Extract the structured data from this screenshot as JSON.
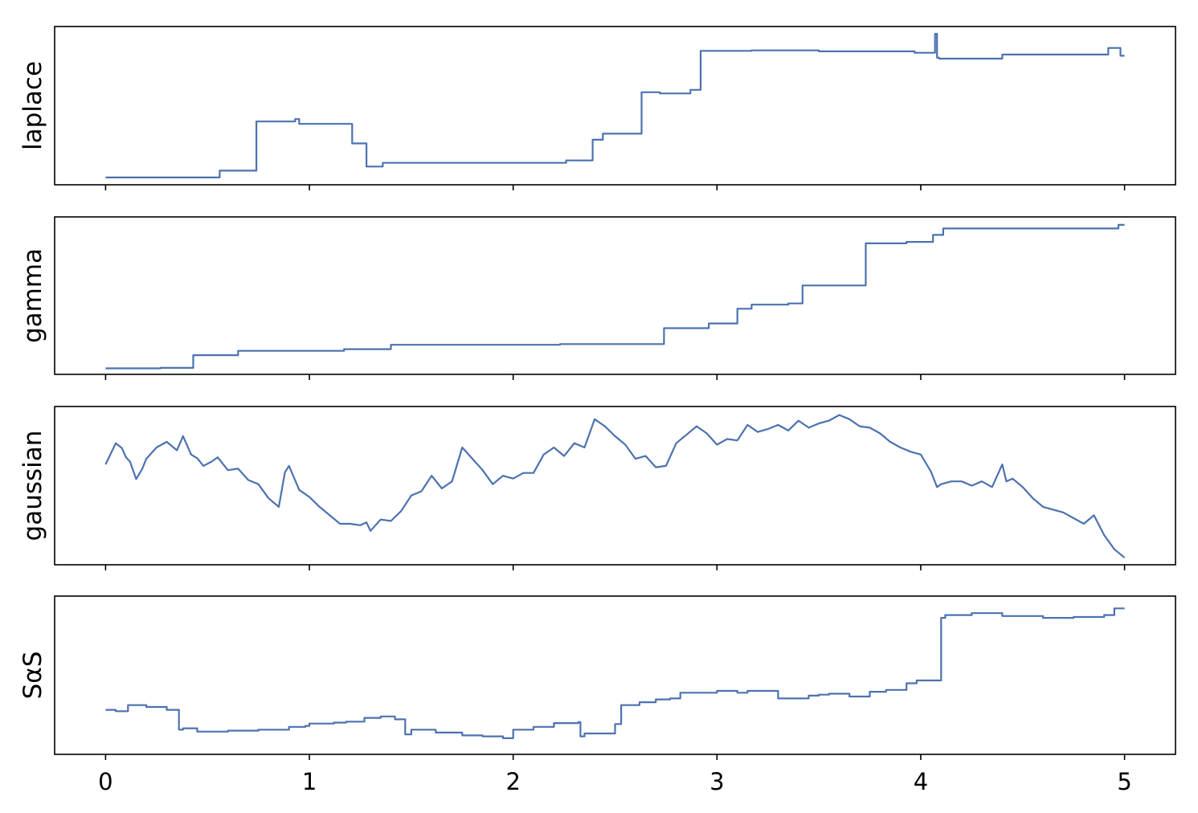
{
  "chart_data": [
    {
      "type": "line",
      "step": true,
      "ylabel": "laplace",
      "xlim": [
        -0.25,
        5.25
      ],
      "ylim": [
        -0.3,
        6.2
      ],
      "y_ticks_shown": false,
      "x_tick_labels_shown": false,
      "color": "#4c72b0",
      "series": [
        {
          "x": [
            0,
            0.56,
            0.56,
            0.74,
            0.74,
            0.93,
            0.93,
            0.95,
            0.95,
            1.21,
            1.21,
            1.28,
            1.28,
            1.36,
            1.36,
            1.8,
            1.8,
            2.26,
            2.26,
            2.39,
            2.39,
            2.44,
            2.44,
            2.63,
            2.63,
            2.72,
            2.72,
            2.87,
            2.87,
            2.92,
            2.92,
            3.17,
            3.17,
            3.5,
            3.5,
            3.97,
            3.97,
            4.07,
            4.07,
            4.08,
            4.08,
            4.09,
            4.09,
            4.4,
            4.4,
            4.92,
            4.92,
            4.98,
            4.98,
            5.0
          ],
          "y": [
            0.0,
            0.0,
            0.28,
            0.28,
            2.3,
            2.3,
            2.4,
            2.4,
            2.2,
            2.2,
            1.4,
            1.4,
            0.45,
            0.45,
            0.6,
            0.6,
            0.6,
            0.6,
            0.7,
            0.7,
            1.55,
            1.55,
            1.8,
            1.8,
            3.5,
            3.5,
            3.45,
            3.45,
            3.6,
            3.6,
            5.2,
            5.2,
            5.22,
            5.22,
            5.18,
            5.18,
            5.12,
            5.12,
            5.9,
            5.9,
            4.92,
            4.92,
            4.88,
            4.88,
            5.05,
            5.05,
            5.32,
            5.32,
            5.0,
            5.0
          ]
        }
      ]
    },
    {
      "type": "line",
      "step": true,
      "ylabel": "gamma",
      "xlim": [
        -0.25,
        5.25
      ],
      "ylim": [
        -0.25,
        6.3
      ],
      "y_ticks_shown": false,
      "x_tick_labels_shown": false,
      "color": "#4c72b0",
      "series": [
        {
          "x": [
            0,
            0.27,
            0.27,
            0.43,
            0.43,
            0.65,
            0.65,
            1.17,
            1.17,
            1.4,
            1.4,
            2.23,
            2.23,
            2.74,
            2.74,
            2.96,
            2.96,
            3.1,
            3.1,
            3.17,
            3.17,
            3.35,
            3.35,
            3.42,
            3.42,
            3.73,
            3.73,
            3.93,
            3.93,
            4.06,
            4.06,
            4.11,
            4.11,
            4.97,
            4.97,
            5.0
          ],
          "y": [
            0.0,
            0.0,
            0.02,
            0.02,
            0.55,
            0.55,
            0.73,
            0.73,
            0.8,
            0.8,
            0.98,
            0.98,
            1.01,
            1.01,
            1.67,
            1.67,
            1.87,
            1.87,
            2.48,
            2.48,
            2.65,
            2.65,
            2.7,
            2.7,
            3.45,
            3.45,
            5.2,
            5.2,
            5.26,
            5.26,
            5.55,
            5.55,
            5.82,
            5.82,
            5.97,
            5.97
          ]
        }
      ]
    },
    {
      "type": "line",
      "step": false,
      "ylabel": "gaussian",
      "xlim": [
        -0.25,
        5.25
      ],
      "ylim": [
        -3.55,
        2.05
      ],
      "y_ticks_shown": false,
      "x_tick_labels_shown": false,
      "color": "#4c72b0",
      "series": [
        {
          "x": [
            0.0,
            0.05,
            0.08,
            0.1,
            0.12,
            0.15,
            0.18,
            0.2,
            0.25,
            0.3,
            0.35,
            0.38,
            0.42,
            0.45,
            0.48,
            0.52,
            0.55,
            0.6,
            0.65,
            0.7,
            0.75,
            0.8,
            0.85,
            0.88,
            0.9,
            0.95,
            1.0,
            1.05,
            1.1,
            1.15,
            1.2,
            1.25,
            1.28,
            1.3,
            1.35,
            1.4,
            1.45,
            1.5,
            1.55,
            1.6,
            1.65,
            1.7,
            1.75,
            1.8,
            1.85,
            1.9,
            1.95,
            2.0,
            2.05,
            2.1,
            2.15,
            2.2,
            2.25,
            2.3,
            2.35,
            2.4,
            2.45,
            2.5,
            2.55,
            2.6,
            2.65,
            2.7,
            2.75,
            2.8,
            2.85,
            2.9,
            2.95,
            3.0,
            3.05,
            3.1,
            3.15,
            3.2,
            3.25,
            3.3,
            3.35,
            3.4,
            3.45,
            3.5,
            3.55,
            3.6,
            3.65,
            3.7,
            3.75,
            3.8,
            3.85,
            3.9,
            3.95,
            4.0,
            4.05,
            4.08,
            4.1,
            4.15,
            4.2,
            4.25,
            4.3,
            4.35,
            4.4,
            4.42,
            4.45,
            4.5,
            4.55,
            4.6,
            4.65,
            4.7,
            4.75,
            4.8,
            4.85,
            4.9,
            4.95,
            5.0
          ],
          "y": [
            0.0,
            0.75,
            0.58,
            0.25,
            0.1,
            -0.52,
            -0.15,
            0.2,
            0.6,
            0.8,
            0.5,
            1.0,
            0.35,
            0.22,
            -0.05,
            0.1,
            0.25,
            -0.2,
            -0.15,
            -0.55,
            -0.7,
            -1.2,
            -1.5,
            -0.28,
            -0.05,
            -0.9,
            -1.15,
            -1.5,
            -1.8,
            -2.1,
            -2.1,
            -2.15,
            -2.05,
            -2.35,
            -1.95,
            -2.0,
            -1.65,
            -1.1,
            -0.95,
            -0.4,
            -0.85,
            -0.6,
            0.6,
            0.2,
            -0.2,
            -0.7,
            -0.4,
            -0.5,
            -0.3,
            -0.3,
            0.35,
            0.6,
            0.3,
            0.75,
            0.6,
            1.6,
            1.35,
            1.0,
            0.7,
            0.2,
            0.3,
            -0.1,
            -0.05,
            0.75,
            1.05,
            1.35,
            1.1,
            0.7,
            0.9,
            0.85,
            1.4,
            1.15,
            1.25,
            1.4,
            1.2,
            1.55,
            1.3,
            1.45,
            1.55,
            1.75,
            1.6,
            1.35,
            1.3,
            1.1,
            0.8,
            0.6,
            0.45,
            0.35,
            -0.25,
            -0.8,
            -0.7,
            -0.6,
            -0.6,
            -0.75,
            -0.6,
            -0.8,
            0.0,
            -0.6,
            -0.5,
            -0.8,
            -1.2,
            -1.5,
            -1.6,
            -1.7,
            -1.9,
            -2.1,
            -1.8,
            -2.5,
            -3.0,
            -3.3
          ]
        }
      ]
    },
    {
      "type": "line",
      "step": true,
      "ylabel": "SαS",
      "xlim": [
        -0.25,
        5.25
      ],
      "ylim": [
        -2.4,
        14.3
      ],
      "y_ticks_shown": false,
      "x_tick_labels_shown": true,
      "x_ticks": [
        0,
        1,
        2,
        3,
        4,
        5
      ],
      "color": "#4c72b0",
      "series": [
        {
          "x": [
            0,
            0.05,
            0.05,
            0.11,
            0.11,
            0.2,
            0.2,
            0.3,
            0.3,
            0.36,
            0.36,
            0.38,
            0.38,
            0.45,
            0.45,
            0.6,
            0.6,
            0.75,
            0.75,
            0.9,
            0.9,
            0.98,
            0.98,
            1.0,
            1.0,
            1.12,
            1.12,
            1.18,
            1.18,
            1.27,
            1.27,
            1.35,
            1.35,
            1.42,
            1.42,
            1.47,
            1.47,
            1.5,
            1.5,
            1.62,
            1.62,
            1.75,
            1.75,
            1.85,
            1.85,
            1.95,
            1.95,
            2.0,
            2.0,
            2.1,
            2.1,
            2.2,
            2.2,
            2.32,
            2.32,
            2.33,
            2.33,
            2.35,
            2.35,
            2.5,
            2.5,
            2.53,
            2.53,
            2.62,
            2.62,
            2.7,
            2.7,
            2.77,
            2.77,
            2.82,
            2.82,
            3.0,
            3.0,
            3.1,
            3.1,
            3.15,
            3.15,
            3.3,
            3.3,
            3.45,
            3.45,
            3.5,
            3.5,
            3.55,
            3.55,
            3.65,
            3.65,
            3.75,
            3.75,
            3.83,
            3.83,
            3.93,
            3.93,
            3.98,
            3.98,
            4.1,
            4.1,
            4.12,
            4.12,
            4.25,
            4.25,
            4.4,
            4.4,
            4.6,
            4.6,
            4.75,
            4.75,
            4.9,
            4.9,
            4.95,
            4.95,
            5.0
          ],
          "y": [
            2.3,
            2.3,
            2.15,
            2.15,
            2.8,
            2.8,
            2.6,
            2.6,
            2.3,
            2.3,
            0.2,
            0.2,
            0.35,
            0.35,
            0.0,
            0.0,
            0.1,
            0.1,
            0.2,
            0.2,
            0.5,
            0.5,
            0.6,
            0.6,
            0.85,
            0.85,
            0.95,
            0.95,
            1.05,
            1.05,
            1.45,
            1.45,
            1.6,
            1.6,
            1.3,
            1.3,
            -0.3,
            -0.3,
            0.2,
            0.2,
            -0.1,
            -0.1,
            -0.4,
            -0.4,
            -0.5,
            -0.5,
            -0.7,
            -0.7,
            0.2,
            0.2,
            0.5,
            0.5,
            0.9,
            0.9,
            1.0,
            1.0,
            -0.5,
            -0.5,
            -0.2,
            -0.2,
            0.8,
            0.8,
            2.8,
            2.8,
            3.1,
            3.1,
            3.4,
            3.4,
            3.5,
            3.5,
            4.1,
            4.1,
            4.3,
            4.3,
            4.1,
            4.1,
            4.3,
            4.3,
            3.5,
            3.5,
            3.8,
            3.8,
            3.9,
            3.9,
            4.0,
            4.0,
            3.7,
            3.7,
            4.2,
            4.2,
            4.4,
            4.4,
            5.1,
            5.1,
            5.4,
            5.4,
            12.0,
            12.0,
            12.3,
            12.3,
            12.5,
            12.5,
            12.2,
            12.2,
            12.0,
            12.0,
            12.1,
            12.1,
            12.3,
            12.3,
            13.0,
            13.0
          ]
        }
      ]
    }
  ]
}
